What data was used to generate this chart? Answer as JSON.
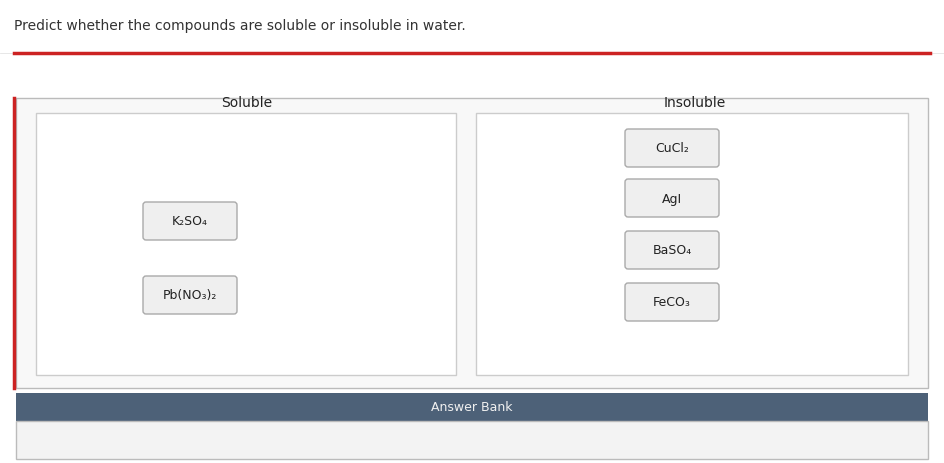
{
  "title": "Predict whether the compounds are soluble or insoluble in water.",
  "title_fontsize": 10,
  "title_color": "#333333",
  "background_color": "#ffffff",
  "soluble_label": "Soluble",
  "insoluble_label": "Insoluble",
  "soluble_items": [
    "K₂SO₄",
    "Pb(NO₃)₂"
  ],
  "insoluble_items": [
    "CuCl₂",
    "AgI",
    "BaSO₄",
    "FeCO₃"
  ],
  "answer_bank_label": "Answer Bank",
  "answer_bank_bg": "#4d6178",
  "answer_bank_text_color": "#f0f0f0",
  "answer_bank_fontsize": 9,
  "compound_fontsize": 9,
  "label_fontsize": 10,
  "red_border_color": "#cc2222",
  "outer_border_color": "#bbbbbb",
  "inner_box_edge_color": "#cccccc",
  "inner_box_face_color": "#ffffff",
  "compound_box_edge_color": "#aaaaaa",
  "compound_box_face_color": "#efefef",
  "main_bg": "#f8f8f8",
  "answer_empty_bg": "#f3f3f3"
}
